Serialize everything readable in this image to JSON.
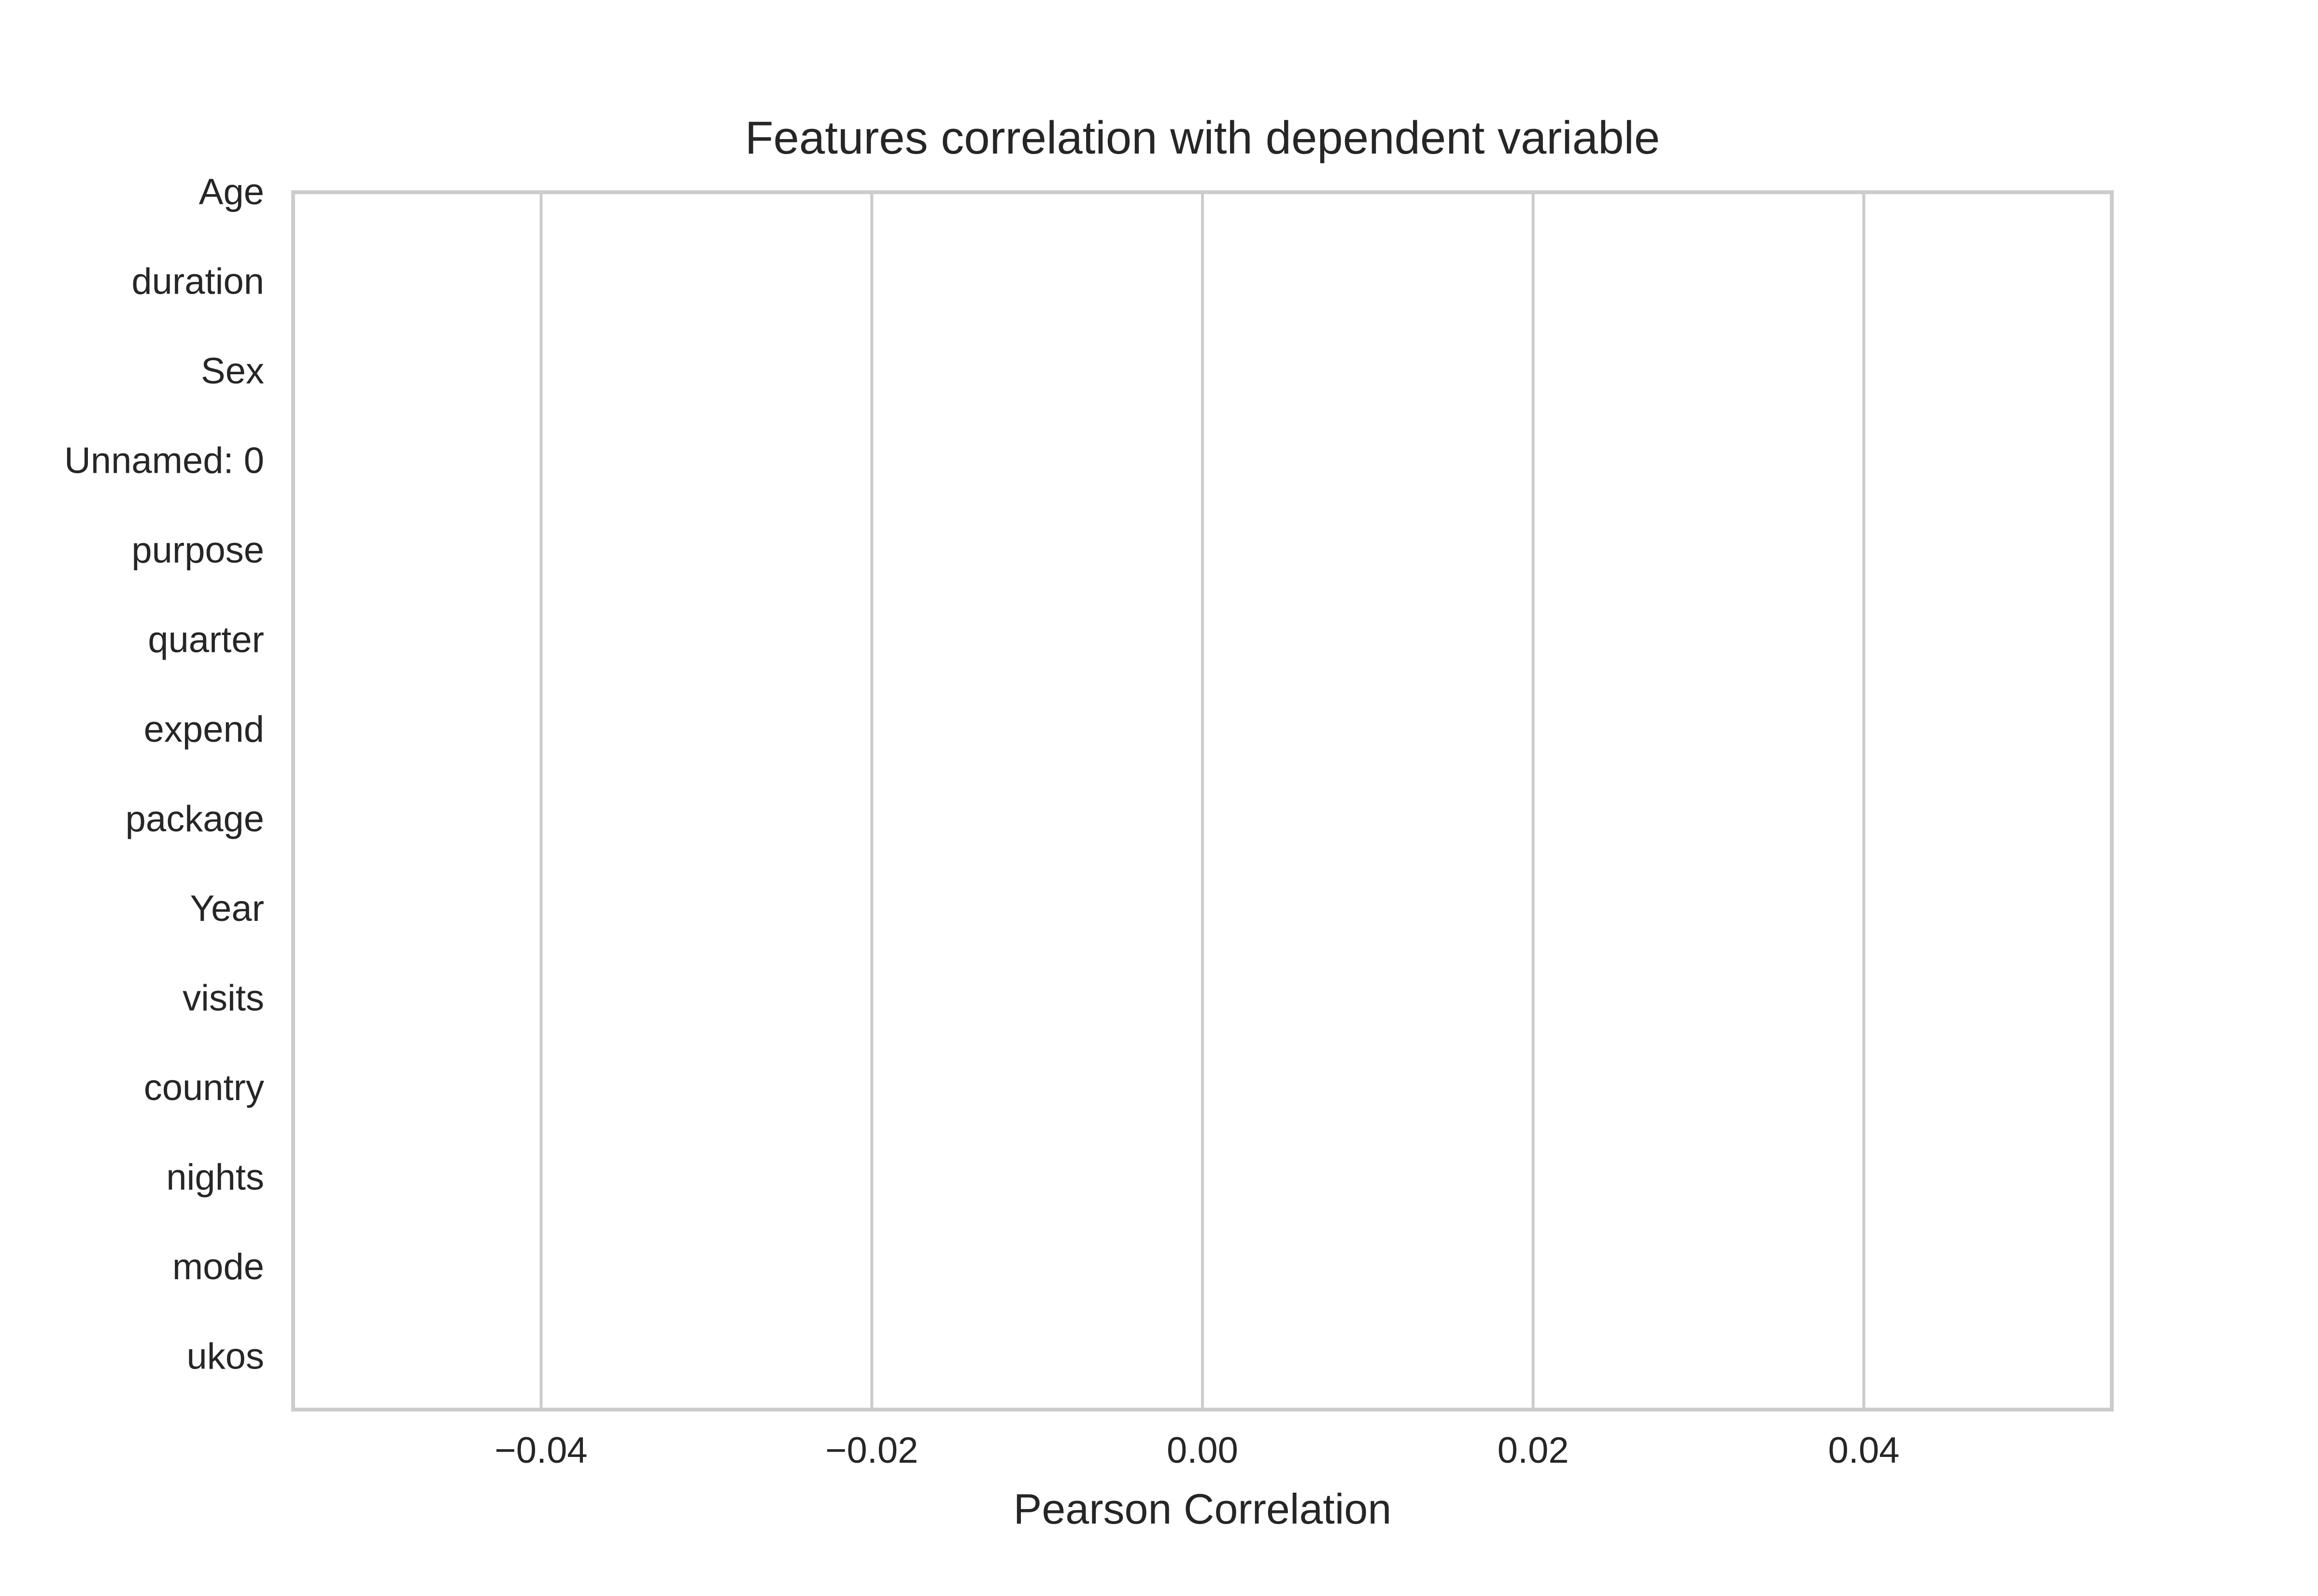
{
  "chart_data": {
    "type": "bar",
    "orientation": "horizontal",
    "title": "Features correlation with dependent variable",
    "xlabel": "Pearson Correlation",
    "ylabel": "",
    "categories": [
      "Age",
      "duration",
      "Sex",
      "Unnamed: 0",
      "purpose",
      "quarter",
      "expend",
      "package",
      "Year",
      "visits",
      "country",
      "nights",
      "mode",
      "ukos"
    ],
    "values": [
      null,
      null,
      null,
      null,
      null,
      null,
      null,
      null,
      null,
      null,
      null,
      null,
      null,
      null
    ],
    "xlim": [
      -0.055,
      0.055
    ],
    "xticks": [
      -0.04,
      -0.02,
      0.0,
      0.02,
      0.04
    ],
    "xtick_labels": [
      "−0.04",
      "−0.02",
      "0.00",
      "0.02",
      "0.04"
    ],
    "grid": true,
    "legend": "none"
  },
  "colors": {
    "grid": "#cccccc",
    "spine": "#cccccc",
    "text": "#262626",
    "background": "#ffffff"
  }
}
